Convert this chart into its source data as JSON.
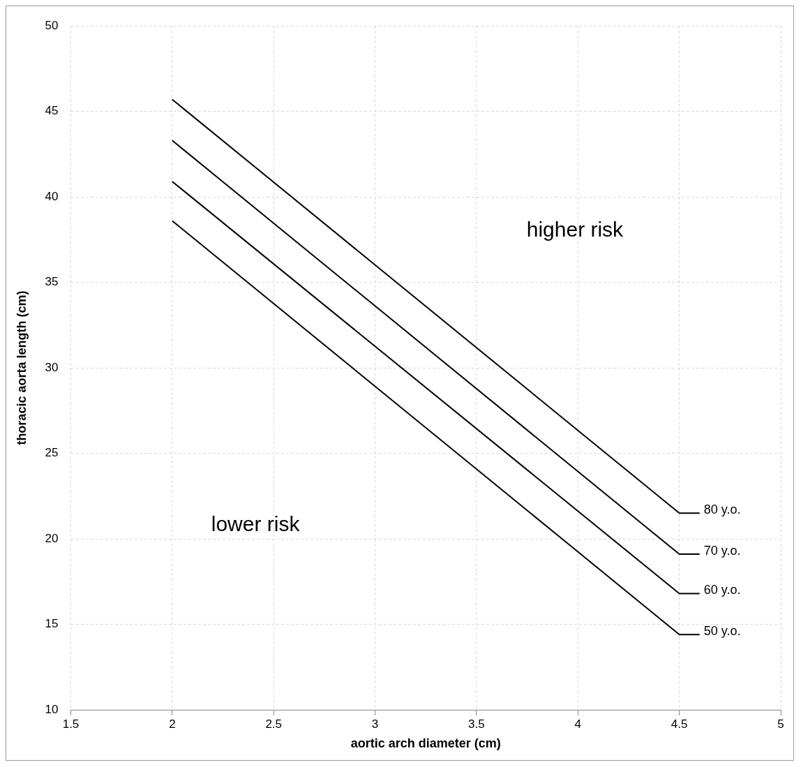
{
  "chart_data": {
    "type": "line",
    "xlabel": "aortic arch diameter (cm)",
    "ylabel": "thoracic aorta length (cm)",
    "xlim": [
      1.5,
      5
    ],
    "xticks": [
      1.5,
      2,
      2.5,
      3,
      3.5,
      4,
      4.5,
      5
    ],
    "ylim": [
      10,
      50
    ],
    "yticks": [
      10,
      15,
      20,
      25,
      30,
      35,
      40,
      45,
      50
    ],
    "grid": true,
    "legend": false,
    "marker": "none",
    "line_style": "solid",
    "series": [
      {
        "name": "80 y.o.",
        "color": "#000000",
        "x": [
          2,
          4.5,
          4.6
        ],
        "values": [
          45.7,
          21.5,
          21.5
        ]
      },
      {
        "name": "70 y.o.",
        "color": "#000000",
        "x": [
          2,
          4.5,
          4.6
        ],
        "values": [
          43.3,
          19.1,
          19.1
        ]
      },
      {
        "name": "60 y.o.",
        "color": "#000000",
        "x": [
          2,
          4.5,
          4.6
        ],
        "values": [
          40.9,
          16.8,
          16.8
        ]
      },
      {
        "name": "50 y.o.",
        "color": "#000000",
        "x": [
          2,
          4.5,
          4.6
        ],
        "values": [
          38.6,
          14.4,
          14.4
        ]
      }
    ],
    "annotations": [
      "higher risk",
      "lower risk"
    ]
  }
}
